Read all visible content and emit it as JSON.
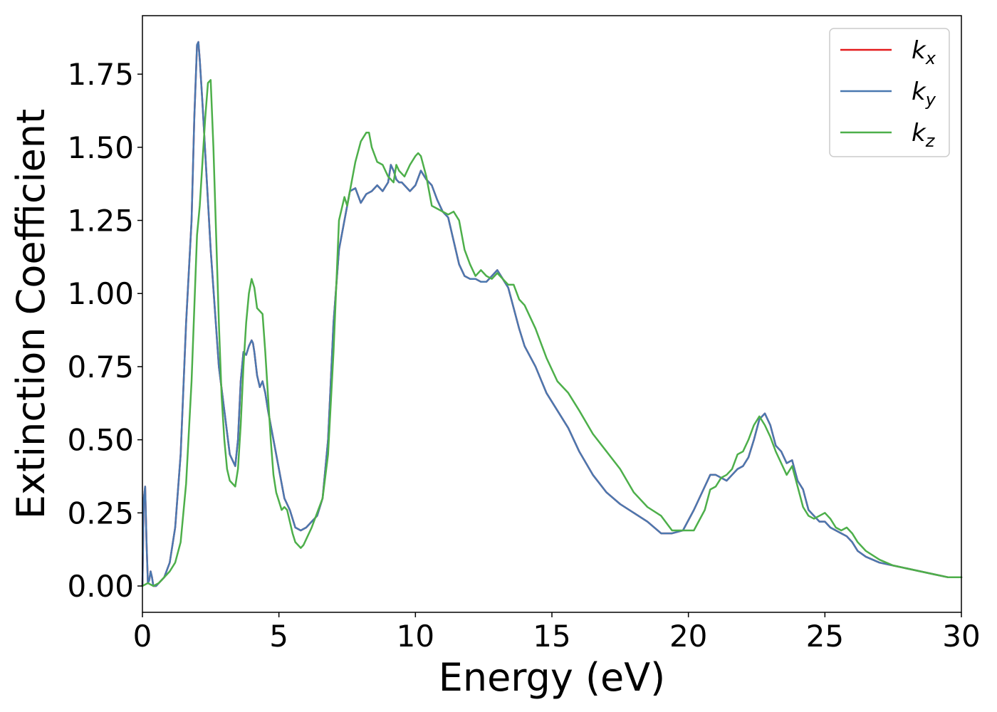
{
  "chart_data": {
    "type": "line",
    "title": "",
    "xlabel": "Energy (eV)",
    "ylabel": "Extinction Coefficient",
    "xlim": [
      0,
      30
    ],
    "ylim": [
      -0.09,
      1.95
    ],
    "xticks": [
      0,
      5,
      10,
      15,
      20,
      25,
      30
    ],
    "yticks": [
      0.0,
      0.25,
      0.5,
      0.75,
      1.0,
      1.25,
      1.5,
      1.75
    ],
    "xtick_labels": [
      "0",
      "5",
      "10",
      "15",
      "20",
      "25",
      "30"
    ],
    "ytick_labels": [
      "0.00",
      "0.25",
      "0.50",
      "0.75",
      "1.00",
      "1.25",
      "1.50",
      "1.75"
    ],
    "grid": false,
    "legend_position": "top-right",
    "series": [
      {
        "name": "k_x",
        "label_base": "k",
        "label_sub": "x",
        "color": "#e41a1c",
        "x": [
          0.0,
          0.05,
          0.1,
          0.15,
          0.2,
          0.25,
          0.3,
          0.35,
          0.4,
          0.5,
          0.6,
          0.8,
          1.0,
          1.2,
          1.4,
          1.6,
          1.8,
          1.9,
          2.0,
          2.05,
          2.1,
          2.2,
          2.35,
          2.5,
          2.65,
          2.8,
          3.0,
          3.2,
          3.4,
          3.5,
          3.6,
          3.7,
          3.8,
          3.9,
          4.0,
          4.05,
          4.1,
          4.2,
          4.3,
          4.4,
          4.5,
          4.6,
          4.7,
          4.8,
          5.0,
          5.2,
          5.4,
          5.6,
          5.8,
          6.0,
          6.2,
          6.4,
          6.6,
          6.8,
          7.0,
          7.2,
          7.4,
          7.6,
          7.8,
          8.0,
          8.2,
          8.4,
          8.6,
          8.8,
          9.0,
          9.1,
          9.2,
          9.3,
          9.4,
          9.5,
          9.6,
          9.8,
          10.0,
          10.2,
          10.4,
          10.6,
          10.8,
          11.0,
          11.2,
          11.4,
          11.6,
          11.8,
          12.0,
          12.2,
          12.4,
          12.6,
          12.8,
          13.0,
          13.2,
          13.4,
          13.6,
          13.8,
          14.0,
          14.4,
          14.8,
          15.2,
          15.6,
          16.0,
          16.5,
          17.0,
          17.5,
          18.0,
          18.5,
          19.0,
          19.4,
          19.8,
          20.2,
          20.6,
          20.8,
          21.0,
          21.2,
          21.4,
          21.6,
          21.8,
          22.0,
          22.2,
          22.4,
          22.6,
          22.8,
          23.0,
          23.2,
          23.4,
          23.6,
          23.8,
          24.0,
          24.2,
          24.4,
          24.6,
          24.8,
          25.0,
          25.2,
          25.4,
          25.6,
          25.8,
          26.0,
          26.2,
          26.5,
          27.0,
          27.5,
          28.0,
          28.5,
          29.0,
          29.5,
          30.0
        ],
        "y": [
          0.0,
          0.3,
          0.34,
          0.15,
          0.01,
          0.02,
          0.05,
          0.03,
          0.0,
          0.0,
          0.01,
          0.03,
          0.08,
          0.2,
          0.45,
          0.9,
          1.25,
          1.6,
          1.85,
          1.86,
          1.8,
          1.65,
          1.4,
          1.15,
          0.95,
          0.75,
          0.6,
          0.45,
          0.41,
          0.5,
          0.7,
          0.8,
          0.79,
          0.82,
          0.84,
          0.83,
          0.8,
          0.72,
          0.68,
          0.7,
          0.66,
          0.6,
          0.55,
          0.5,
          0.4,
          0.3,
          0.26,
          0.2,
          0.19,
          0.2,
          0.22,
          0.24,
          0.3,
          0.5,
          0.9,
          1.15,
          1.25,
          1.35,
          1.36,
          1.31,
          1.34,
          1.35,
          1.37,
          1.35,
          1.38,
          1.44,
          1.42,
          1.39,
          1.38,
          1.38,
          1.37,
          1.35,
          1.37,
          1.42,
          1.39,
          1.37,
          1.32,
          1.28,
          1.26,
          1.18,
          1.1,
          1.06,
          1.05,
          1.05,
          1.04,
          1.04,
          1.06,
          1.08,
          1.05,
          1.02,
          0.95,
          0.88,
          0.82,
          0.75,
          0.66,
          0.6,
          0.54,
          0.46,
          0.38,
          0.32,
          0.28,
          0.25,
          0.22,
          0.18,
          0.18,
          0.19,
          0.26,
          0.34,
          0.38,
          0.38,
          0.37,
          0.36,
          0.38,
          0.4,
          0.41,
          0.44,
          0.5,
          0.57,
          0.59,
          0.55,
          0.48,
          0.46,
          0.42,
          0.43,
          0.36,
          0.33,
          0.26,
          0.24,
          0.22,
          0.22,
          0.2,
          0.19,
          0.18,
          0.17,
          0.15,
          0.12,
          0.1,
          0.08,
          0.07,
          0.06,
          0.05,
          0.04,
          0.03,
          0.03
        ]
      },
      {
        "name": "k_y",
        "label_base": "k",
        "label_sub": "y",
        "color": "#4a78b0",
        "x": [
          0.0,
          0.05,
          0.1,
          0.15,
          0.2,
          0.25,
          0.3,
          0.35,
          0.4,
          0.5,
          0.6,
          0.8,
          1.0,
          1.2,
          1.4,
          1.6,
          1.8,
          1.9,
          2.0,
          2.05,
          2.1,
          2.2,
          2.35,
          2.5,
          2.65,
          2.8,
          3.0,
          3.2,
          3.4,
          3.5,
          3.6,
          3.7,
          3.8,
          3.9,
          4.0,
          4.05,
          4.1,
          4.2,
          4.3,
          4.4,
          4.5,
          4.6,
          4.7,
          4.8,
          5.0,
          5.2,
          5.4,
          5.6,
          5.8,
          6.0,
          6.2,
          6.4,
          6.6,
          6.8,
          7.0,
          7.2,
          7.4,
          7.6,
          7.8,
          8.0,
          8.2,
          8.4,
          8.6,
          8.8,
          9.0,
          9.1,
          9.2,
          9.3,
          9.4,
          9.5,
          9.6,
          9.8,
          10.0,
          10.2,
          10.4,
          10.6,
          10.8,
          11.0,
          11.2,
          11.4,
          11.6,
          11.8,
          12.0,
          12.2,
          12.4,
          12.6,
          12.8,
          13.0,
          13.2,
          13.4,
          13.6,
          13.8,
          14.0,
          14.4,
          14.8,
          15.2,
          15.6,
          16.0,
          16.5,
          17.0,
          17.5,
          18.0,
          18.5,
          19.0,
          19.4,
          19.8,
          20.2,
          20.6,
          20.8,
          21.0,
          21.2,
          21.4,
          21.6,
          21.8,
          22.0,
          22.2,
          22.4,
          22.6,
          22.8,
          23.0,
          23.2,
          23.4,
          23.6,
          23.8,
          24.0,
          24.2,
          24.4,
          24.6,
          24.8,
          25.0,
          25.2,
          25.4,
          25.6,
          25.8,
          26.0,
          26.2,
          26.5,
          27.0,
          27.5,
          28.0,
          28.5,
          29.0,
          29.5,
          30.0
        ],
        "y": [
          0.0,
          0.3,
          0.34,
          0.15,
          0.01,
          0.02,
          0.05,
          0.03,
          0.0,
          0.0,
          0.01,
          0.03,
          0.08,
          0.2,
          0.45,
          0.9,
          1.25,
          1.6,
          1.85,
          1.86,
          1.8,
          1.65,
          1.4,
          1.15,
          0.95,
          0.75,
          0.6,
          0.45,
          0.41,
          0.5,
          0.7,
          0.8,
          0.79,
          0.82,
          0.84,
          0.83,
          0.8,
          0.72,
          0.68,
          0.7,
          0.66,
          0.6,
          0.55,
          0.5,
          0.4,
          0.3,
          0.26,
          0.2,
          0.19,
          0.2,
          0.22,
          0.24,
          0.3,
          0.5,
          0.9,
          1.15,
          1.25,
          1.35,
          1.36,
          1.31,
          1.34,
          1.35,
          1.37,
          1.35,
          1.38,
          1.44,
          1.42,
          1.39,
          1.38,
          1.38,
          1.37,
          1.35,
          1.37,
          1.42,
          1.39,
          1.37,
          1.32,
          1.28,
          1.26,
          1.18,
          1.1,
          1.06,
          1.05,
          1.05,
          1.04,
          1.04,
          1.06,
          1.08,
          1.05,
          1.02,
          0.95,
          0.88,
          0.82,
          0.75,
          0.66,
          0.6,
          0.54,
          0.46,
          0.38,
          0.32,
          0.28,
          0.25,
          0.22,
          0.18,
          0.18,
          0.19,
          0.26,
          0.34,
          0.38,
          0.38,
          0.37,
          0.36,
          0.38,
          0.4,
          0.41,
          0.44,
          0.5,
          0.57,
          0.59,
          0.55,
          0.48,
          0.46,
          0.42,
          0.43,
          0.36,
          0.33,
          0.26,
          0.24,
          0.22,
          0.22,
          0.2,
          0.19,
          0.18,
          0.17,
          0.15,
          0.12,
          0.1,
          0.08,
          0.07,
          0.06,
          0.05,
          0.04,
          0.03,
          0.03
        ]
      },
      {
        "name": "k_z",
        "label_base": "k",
        "label_sub": "z",
        "color": "#4daf4a",
        "x": [
          0.0,
          0.2,
          0.4,
          0.6,
          0.8,
          1.0,
          1.2,
          1.4,
          1.6,
          1.8,
          1.9,
          2.0,
          2.1,
          2.2,
          2.3,
          2.4,
          2.5,
          2.6,
          2.7,
          2.8,
          2.9,
          3.0,
          3.1,
          3.2,
          3.3,
          3.4,
          3.5,
          3.6,
          3.7,
          3.8,
          3.9,
          4.0,
          4.1,
          4.2,
          4.3,
          4.4,
          4.5,
          4.6,
          4.7,
          4.8,
          4.9,
          5.0,
          5.1,
          5.2,
          5.3,
          5.4,
          5.5,
          5.6,
          5.8,
          5.9,
          6.0,
          6.2,
          6.4,
          6.6,
          6.8,
          7.0,
          7.2,
          7.4,
          7.5,
          7.6,
          7.8,
          8.0,
          8.2,
          8.3,
          8.4,
          8.6,
          8.8,
          9.0,
          9.2,
          9.3,
          9.4,
          9.6,
          9.8,
          10.0,
          10.1,
          10.2,
          10.4,
          10.6,
          10.8,
          11.0,
          11.2,
          11.4,
          11.6,
          11.8,
          12.0,
          12.2,
          12.4,
          12.6,
          12.8,
          13.0,
          13.2,
          13.4,
          13.6,
          13.8,
          14.0,
          14.4,
          14.8,
          15.2,
          15.6,
          16.0,
          16.5,
          17.0,
          17.5,
          18.0,
          18.5,
          19.0,
          19.4,
          19.8,
          20.2,
          20.6,
          20.8,
          21.0,
          21.2,
          21.4,
          21.6,
          21.8,
          22.0,
          22.2,
          22.4,
          22.6,
          22.8,
          23.0,
          23.2,
          23.4,
          23.6,
          23.8,
          24.0,
          24.2,
          24.4,
          24.6,
          24.8,
          25.0,
          25.2,
          25.4,
          25.6,
          25.8,
          26.0,
          26.2,
          26.5,
          27.0,
          27.5,
          28.0,
          28.5,
          29.0,
          29.5,
          30.0
        ],
        "y": [
          0.0,
          0.01,
          0.0,
          0.01,
          0.03,
          0.05,
          0.08,
          0.15,
          0.35,
          0.7,
          0.95,
          1.2,
          1.3,
          1.45,
          1.6,
          1.72,
          1.73,
          1.5,
          1.2,
          0.9,
          0.65,
          0.5,
          0.4,
          0.36,
          0.35,
          0.34,
          0.4,
          0.55,
          0.75,
          0.9,
          1.0,
          1.05,
          1.02,
          0.95,
          0.94,
          0.93,
          0.8,
          0.65,
          0.5,
          0.38,
          0.32,
          0.29,
          0.26,
          0.27,
          0.26,
          0.22,
          0.18,
          0.15,
          0.13,
          0.14,
          0.16,
          0.2,
          0.25,
          0.3,
          0.45,
          0.8,
          1.25,
          1.33,
          1.3,
          1.35,
          1.45,
          1.52,
          1.55,
          1.55,
          1.5,
          1.45,
          1.44,
          1.4,
          1.38,
          1.44,
          1.42,
          1.4,
          1.44,
          1.47,
          1.48,
          1.47,
          1.4,
          1.3,
          1.29,
          1.28,
          1.27,
          1.28,
          1.25,
          1.15,
          1.1,
          1.06,
          1.08,
          1.06,
          1.05,
          1.07,
          1.05,
          1.03,
          1.03,
          0.98,
          0.96,
          0.88,
          0.78,
          0.7,
          0.66,
          0.6,
          0.52,
          0.46,
          0.4,
          0.32,
          0.27,
          0.24,
          0.19,
          0.19,
          0.19,
          0.26,
          0.33,
          0.34,
          0.37,
          0.38,
          0.4,
          0.45,
          0.46,
          0.5,
          0.55,
          0.58,
          0.55,
          0.51,
          0.46,
          0.42,
          0.38,
          0.41,
          0.34,
          0.27,
          0.24,
          0.23,
          0.24,
          0.25,
          0.23,
          0.2,
          0.19,
          0.2,
          0.18,
          0.15,
          0.12,
          0.09,
          0.07,
          0.06,
          0.05,
          0.04,
          0.03,
          0.03
        ]
      }
    ]
  }
}
